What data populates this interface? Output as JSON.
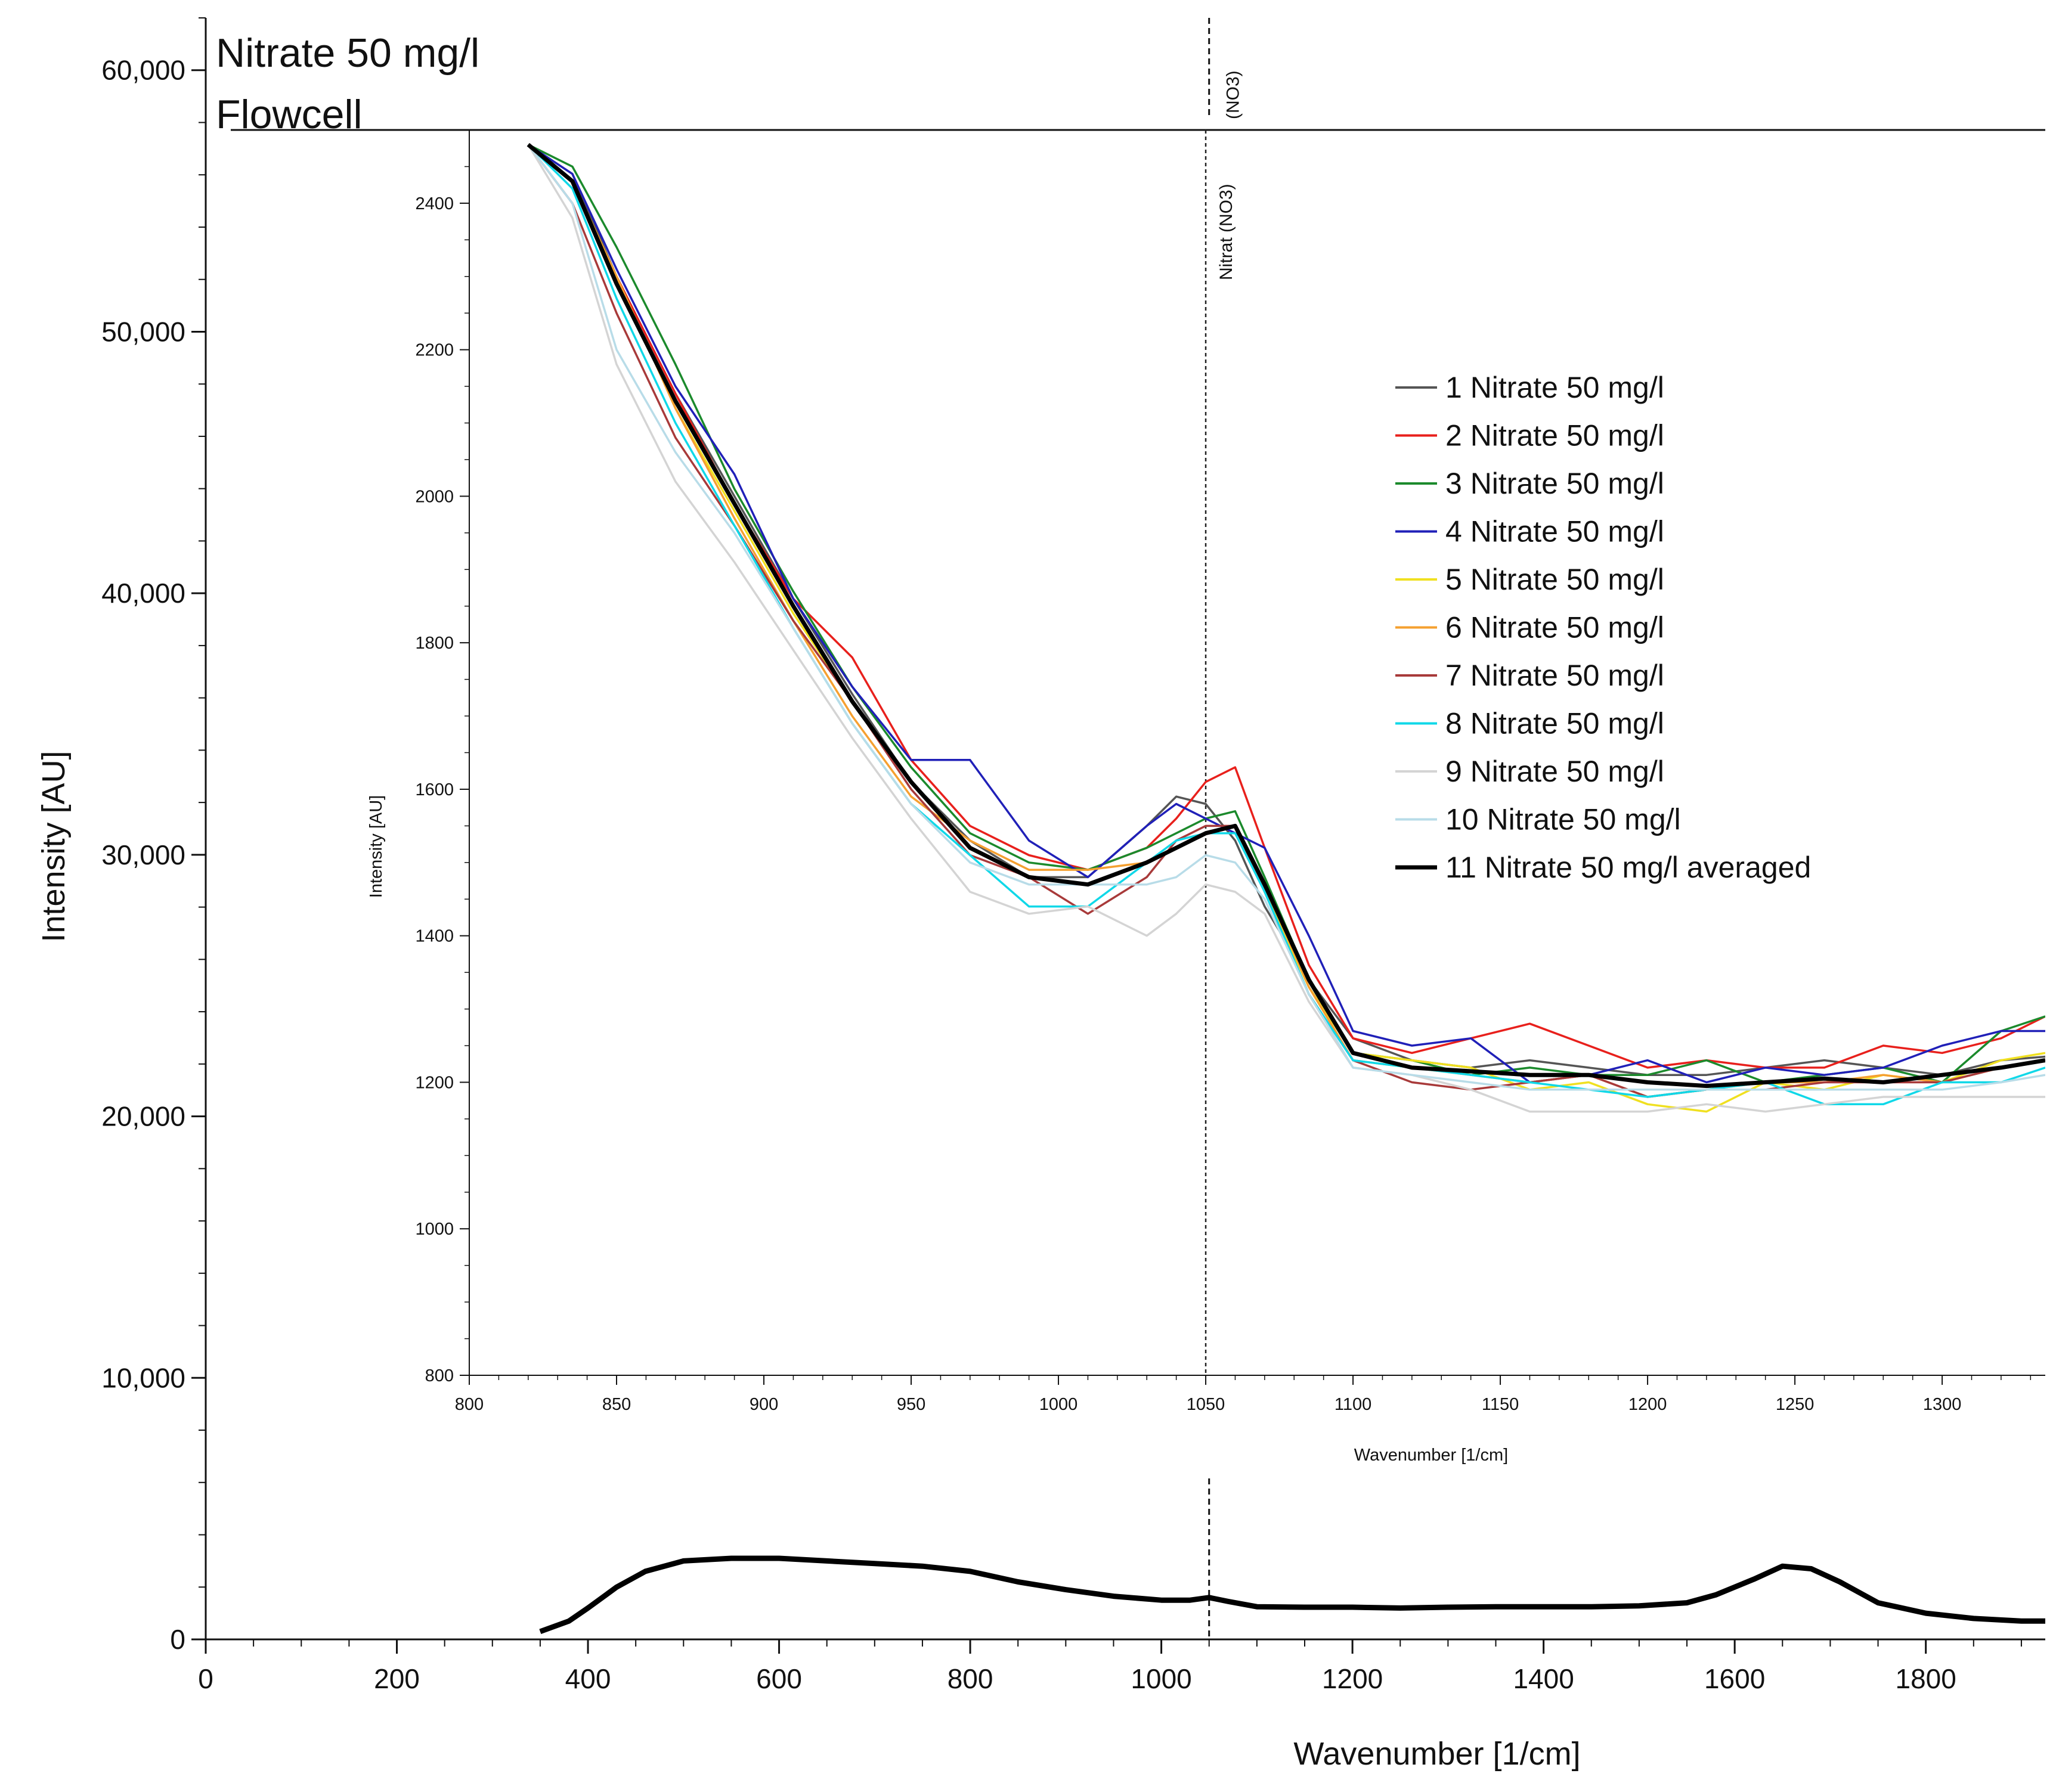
{
  "chart_data": [
    {
      "type": "line",
      "title": [
        "Nitrate 50 mg/l",
        "Flowcell"
      ],
      "xlabel": "Wavenumber [1/cm]",
      "ylabel": "Intensity [AU]",
      "xlim": [
        0,
        1925
      ],
      "ylim": [
        0,
        62000
      ],
      "xticks": [
        0,
        200,
        400,
        600,
        800,
        1000,
        1200,
        1400,
        1600,
        1800
      ],
      "xtick_labels": [
        "0",
        "200",
        "400",
        "600",
        "800",
        "1000",
        "1200",
        "1400",
        "1600",
        "1800"
      ],
      "yticks": [
        0,
        10000,
        20000,
        30000,
        40000,
        50000,
        60000
      ],
      "ytick_labels": [
        "0",
        "10,000",
        "20,000",
        "30,000",
        "40,000",
        "50,000",
        "60,000"
      ],
      "grid": false,
      "annotations": [
        {
          "x": 1050,
          "text": "(NO3)",
          "style": "dashed vertical line"
        }
      ],
      "series": [
        {
          "name": "11 Nitrate 50 mg/l averaged",
          "color": "#000000",
          "x": [
            350,
            380,
            400,
            430,
            460,
            500,
            550,
            600,
            650,
            700,
            750,
            800,
            850,
            900,
            950,
            1000,
            1030,
            1050,
            1070,
            1100,
            1150,
            1200,
            1250,
            1300,
            1350,
            1400,
            1450,
            1500,
            1550,
            1580,
            1620,
            1650,
            1680,
            1710,
            1750,
            1800,
            1850,
            1900,
            1925
          ],
          "y": [
            300,
            700,
            1200,
            2000,
            2600,
            3000,
            3100,
            3100,
            3000,
            2900,
            2800,
            2600,
            2200,
            1900,
            1650,
            1500,
            1500,
            1600,
            1450,
            1250,
            1230,
            1230,
            1200,
            1230,
            1250,
            1250,
            1250,
            1280,
            1400,
            1700,
            2300,
            2800,
            2700,
            2200,
            1400,
            1000,
            800,
            700,
            700
          ]
        }
      ]
    },
    {
      "type": "line",
      "inset": true,
      "xlabel": "Wavenumber [1/cm]",
      "ylabel": "Intensity [AU]",
      "xlim": [
        800,
        1335
      ],
      "ylim": [
        800,
        2500
      ],
      "xticks": [
        800,
        850,
        900,
        950,
        1000,
        1050,
        1100,
        1150,
        1200,
        1250,
        1300
      ],
      "xtick_labels": [
        "800",
        "850",
        "900",
        "950",
        "1000",
        "1050",
        "1100",
        "1150",
        "1200",
        "1250",
        "1300"
      ],
      "yticks": [
        800,
        1000,
        1200,
        1400,
        1600,
        1800,
        2000,
        2200,
        2400
      ],
      "ytick_labels": [
        "800",
        "1000",
        "1200",
        "1400",
        "1600",
        "1800",
        "2000",
        "2200",
        "2400"
      ],
      "grid": false,
      "legend": "right",
      "annotations": [
        {
          "x": 1050,
          "text": "Nitrat (NO3)",
          "style": "dashed vertical line"
        }
      ],
      "x": [
        820,
        835,
        850,
        870,
        890,
        910,
        930,
        950,
        970,
        990,
        1010,
        1030,
        1040,
        1050,
        1060,
        1070,
        1085,
        1100,
        1120,
        1140,
        1160,
        1180,
        1200,
        1220,
        1240,
        1260,
        1280,
        1300,
        1320,
        1335
      ],
      "series": [
        {
          "name": "1 Nitrate 50 mg/l",
          "color": "#555555",
          "y": [
            2480,
            2440,
            2300,
            2140,
            2000,
            1860,
            1730,
            1610,
            1530,
            1480,
            1480,
            1550,
            1590,
            1580,
            1530,
            1440,
            1340,
            1260,
            1230,
            1220,
            1230,
            1220,
            1210,
            1210,
            1220,
            1230,
            1220,
            1210,
            1230,
            1235
          ]
        },
        {
          "name": "2 Nitrate 50 mg/l",
          "color": "#e8201c",
          "y": [
            2480,
            2430,
            2300,
            2140,
            1990,
            1860,
            1780,
            1640,
            1550,
            1510,
            1490,
            1520,
            1560,
            1610,
            1630,
            1520,
            1360,
            1260,
            1240,
            1260,
            1280,
            1250,
            1220,
            1230,
            1220,
            1220,
            1250,
            1240,
            1260,
            1290
          ]
        },
        {
          "name": "3 Nitrate 50 mg/l",
          "color": "#1b8a2c",
          "y": [
            2480,
            2450,
            2340,
            2180,
            2010,
            1870,
            1740,
            1630,
            1540,
            1500,
            1490,
            1520,
            1540,
            1560,
            1570,
            1480,
            1340,
            1240,
            1230,
            1210,
            1220,
            1210,
            1210,
            1230,
            1200,
            1210,
            1220,
            1200,
            1270,
            1290
          ]
        },
        {
          "name": "4 Nitrate 50 mg/l",
          "color": "#2020b8",
          "y": [
            2480,
            2440,
            2310,
            2150,
            2030,
            1860,
            1740,
            1640,
            1640,
            1530,
            1480,
            1550,
            1580,
            1560,
            1540,
            1520,
            1400,
            1270,
            1250,
            1260,
            1200,
            1210,
            1230,
            1200,
            1220,
            1210,
            1220,
            1250,
            1270,
            1270
          ]
        },
        {
          "name": "5 Nitrate 50 mg/l",
          "color": "#f0e020",
          "y": [
            2480,
            2430,
            2300,
            2120,
            1980,
            1840,
            1720,
            1610,
            1520,
            1480,
            1470,
            1500,
            1520,
            1540,
            1550,
            1460,
            1330,
            1240,
            1230,
            1220,
            1190,
            1200,
            1170,
            1160,
            1200,
            1190,
            1210,
            1200,
            1230,
            1240
          ]
        },
        {
          "name": "6 Nitrate 50 mg/l",
          "color": "#f5a030",
          "y": [
            2480,
            2430,
            2300,
            2120,
            1970,
            1830,
            1700,
            1590,
            1530,
            1490,
            1490,
            1500,
            1520,
            1540,
            1550,
            1470,
            1330,
            1230,
            1220,
            1210,
            1200,
            1210,
            1180,
            1190,
            1200,
            1200,
            1210,
            1200,
            1220,
            1230
          ]
        },
        {
          "name": "7 Nitrate 50 mg/l",
          "color": "#a83a3a",
          "y": [
            2480,
            2400,
            2250,
            2080,
            1960,
            1830,
            1720,
            1600,
            1510,
            1480,
            1430,
            1480,
            1530,
            1550,
            1550,
            1460,
            1320,
            1230,
            1200,
            1190,
            1200,
            1210,
            1180,
            1190,
            1190,
            1200,
            1200,
            1200,
            1220,
            1230
          ]
        },
        {
          "name": "8 Nitrate 50 mg/l",
          "color": "#10d8e8",
          "y": [
            2480,
            2420,
            2270,
            2100,
            1960,
            1820,
            1690,
            1580,
            1510,
            1440,
            1440,
            1500,
            1530,
            1540,
            1540,
            1460,
            1320,
            1230,
            1220,
            1210,
            1200,
            1190,
            1180,
            1190,
            1200,
            1170,
            1170,
            1200,
            1200,
            1220
          ]
        },
        {
          "name": "9 Nitrate 50 mg/l",
          "color": "#d4d4d4",
          "y": [
            2480,
            2380,
            2180,
            2020,
            1910,
            1790,
            1670,
            1560,
            1460,
            1430,
            1440,
            1400,
            1430,
            1470,
            1460,
            1430,
            1310,
            1220,
            1210,
            1190,
            1160,
            1160,
            1160,
            1170,
            1160,
            1170,
            1180,
            1180,
            1180,
            1180
          ]
        },
        {
          "name": "10 Nitrate 50 mg/l",
          "color": "#b8dce8",
          "y": [
            2480,
            2400,
            2200,
            2060,
            1950,
            1820,
            1690,
            1580,
            1500,
            1470,
            1470,
            1470,
            1480,
            1510,
            1500,
            1450,
            1320,
            1220,
            1210,
            1200,
            1190,
            1190,
            1190,
            1190,
            1190,
            1190,
            1190,
            1190,
            1200,
            1210
          ]
        },
        {
          "name": "11 Nitrate 50 mg/l averaged",
          "color": "#000000",
          "y": [
            2480,
            2430,
            2290,
            2130,
            1990,
            1850,
            1720,
            1610,
            1520,
            1480,
            1470,
            1500,
            1520,
            1540,
            1550,
            1470,
            1340,
            1240,
            1220,
            1215,
            1210,
            1210,
            1200,
            1195,
            1200,
            1205,
            1200,
            1210,
            1220,
            1230
          ]
        }
      ]
    }
  ]
}
